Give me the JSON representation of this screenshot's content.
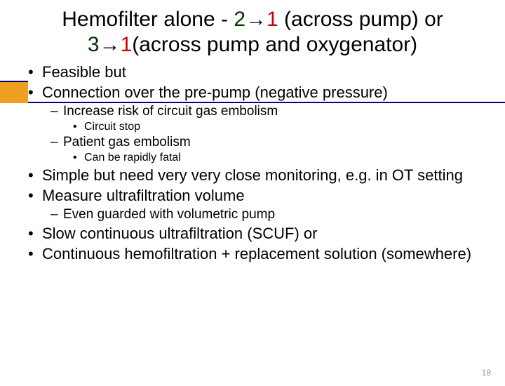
{
  "title": {
    "pre": "Hemofilter alone - ",
    "n2": "2",
    "arrow": "→",
    "n1a": "1",
    "mid1": " (across pump) or ",
    "n3": "3",
    "n1b": "1",
    "mid2": "(across pump and oxygenator)"
  },
  "bullets": {
    "b1": "Feasible but",
    "b2": "Connection over the pre-pump (negative pressure)",
    "b2_1": "Increase risk of circuit gas embolism",
    "b2_1_1": "Circuit stop",
    "b2_2": "Patient gas embolism",
    "b2_2_1": "Can be rapidly fatal",
    "b3": "Simple but need very very close monitoring, e.g. in OT setting",
    "b4": "Measure ultrafiltration volume",
    "b4_1": "Even guarded with volumetric pump",
    "b5": "Slow continuous ultrafiltration (SCUF) or",
    "b6": "Continuous hemofiltration + replacement solution (somewhere)"
  },
  "page_number": "18",
  "colors": {
    "accent": "#f0a020",
    "rule": "#000080",
    "num_dark": "#003300",
    "num_red": "#cc0000"
  }
}
